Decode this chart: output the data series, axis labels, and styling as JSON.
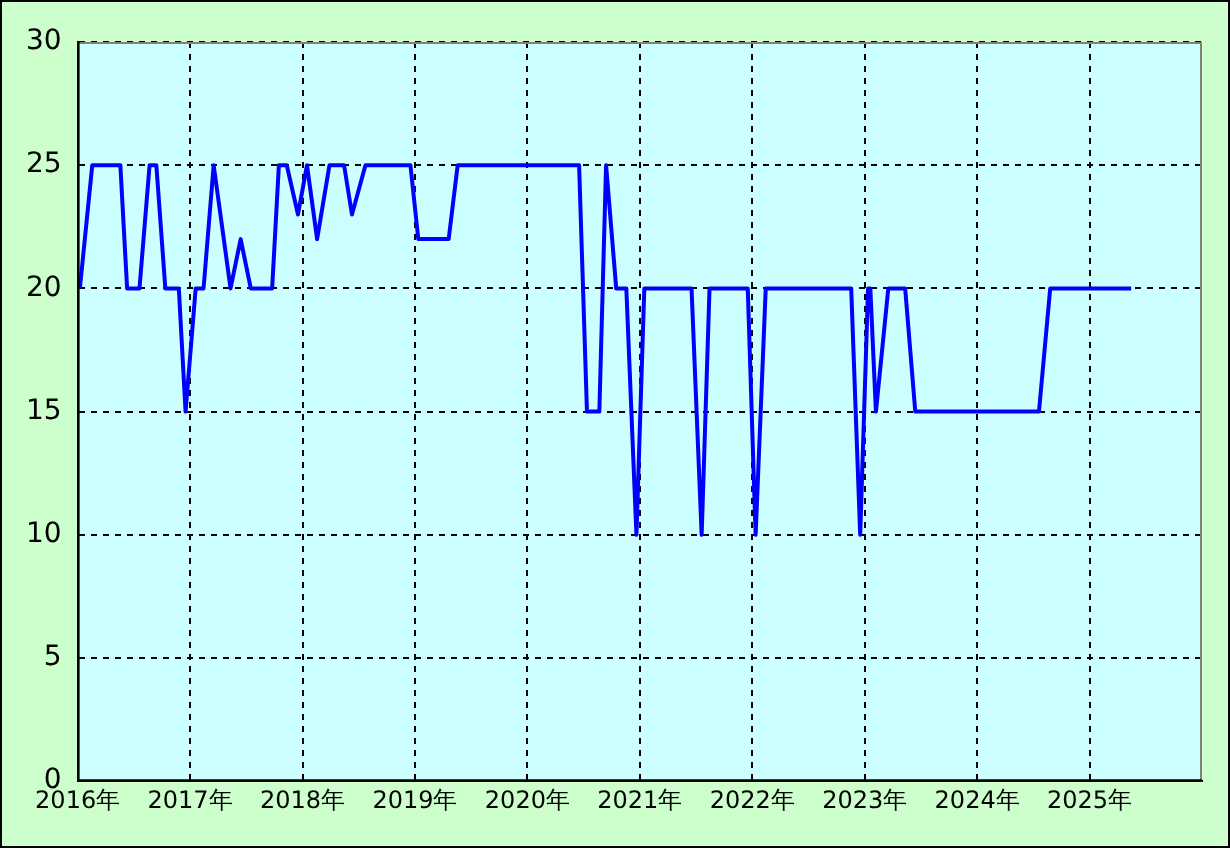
{
  "chart_data": {
    "type": "line",
    "color": "#0000ff",
    "grid": true,
    "x": [
      2016.02,
      2016.13,
      2016.38,
      2016.44,
      2016.55,
      2016.64,
      2016.7,
      2016.78,
      2016.9,
      2016.96,
      2017.05,
      2017.12,
      2017.21,
      2017.36,
      2017.45,
      2017.54,
      2017.73,
      2017.79,
      2017.86,
      2017.96,
      2018.04,
      2018.13,
      2018.24,
      2018.37,
      2018.44,
      2018.56,
      2018.96,
      2019.03,
      2019.3,
      2019.38,
      2020.46,
      2020.53,
      2020.64,
      2020.7,
      2020.79,
      2020.88,
      2020.97,
      2021.04,
      2021.46,
      2021.55,
      2021.62,
      2021.96,
      2022.03,
      2022.12,
      2022.88,
      2022.96,
      2023.03,
      2023.05,
      2023.1,
      2023.21,
      2023.36,
      2023.45,
      2024.55,
      2024.65,
      2025.37
    ],
    "values": [
      20,
      25,
      25,
      20,
      20,
      25,
      25,
      20,
      20,
      15,
      20,
      20,
      25,
      20,
      22,
      20,
      20,
      25,
      25,
      23,
      25,
      22,
      25,
      25,
      23,
      25,
      25,
      22,
      22,
      25,
      25,
      15,
      15,
      25,
      20,
      20,
      10,
      20,
      20,
      10,
      20,
      20,
      10,
      20,
      20,
      10,
      20,
      20,
      15,
      20,
      20,
      15,
      15,
      20,
      20
    ],
    "xlim": [
      2016,
      2026
    ],
    "xticks": [
      {
        "value": 2016,
        "label": "2016年"
      },
      {
        "value": 2017,
        "label": "2017年"
      },
      {
        "value": 2018,
        "label": "2018年"
      },
      {
        "value": 2019,
        "label": "2019年"
      },
      {
        "value": 2020,
        "label": "2020年"
      },
      {
        "value": 2021,
        "label": "2021年"
      },
      {
        "value": 2022,
        "label": "2022年"
      },
      {
        "value": 2023,
        "label": "2023年"
      },
      {
        "value": 2024,
        "label": "2024年"
      },
      {
        "value": 2025,
        "label": "2025年"
      }
    ],
    "ylim": [
      0,
      30
    ],
    "yticks": [
      0,
      5,
      10,
      15,
      20,
      25,
      30
    ]
  }
}
